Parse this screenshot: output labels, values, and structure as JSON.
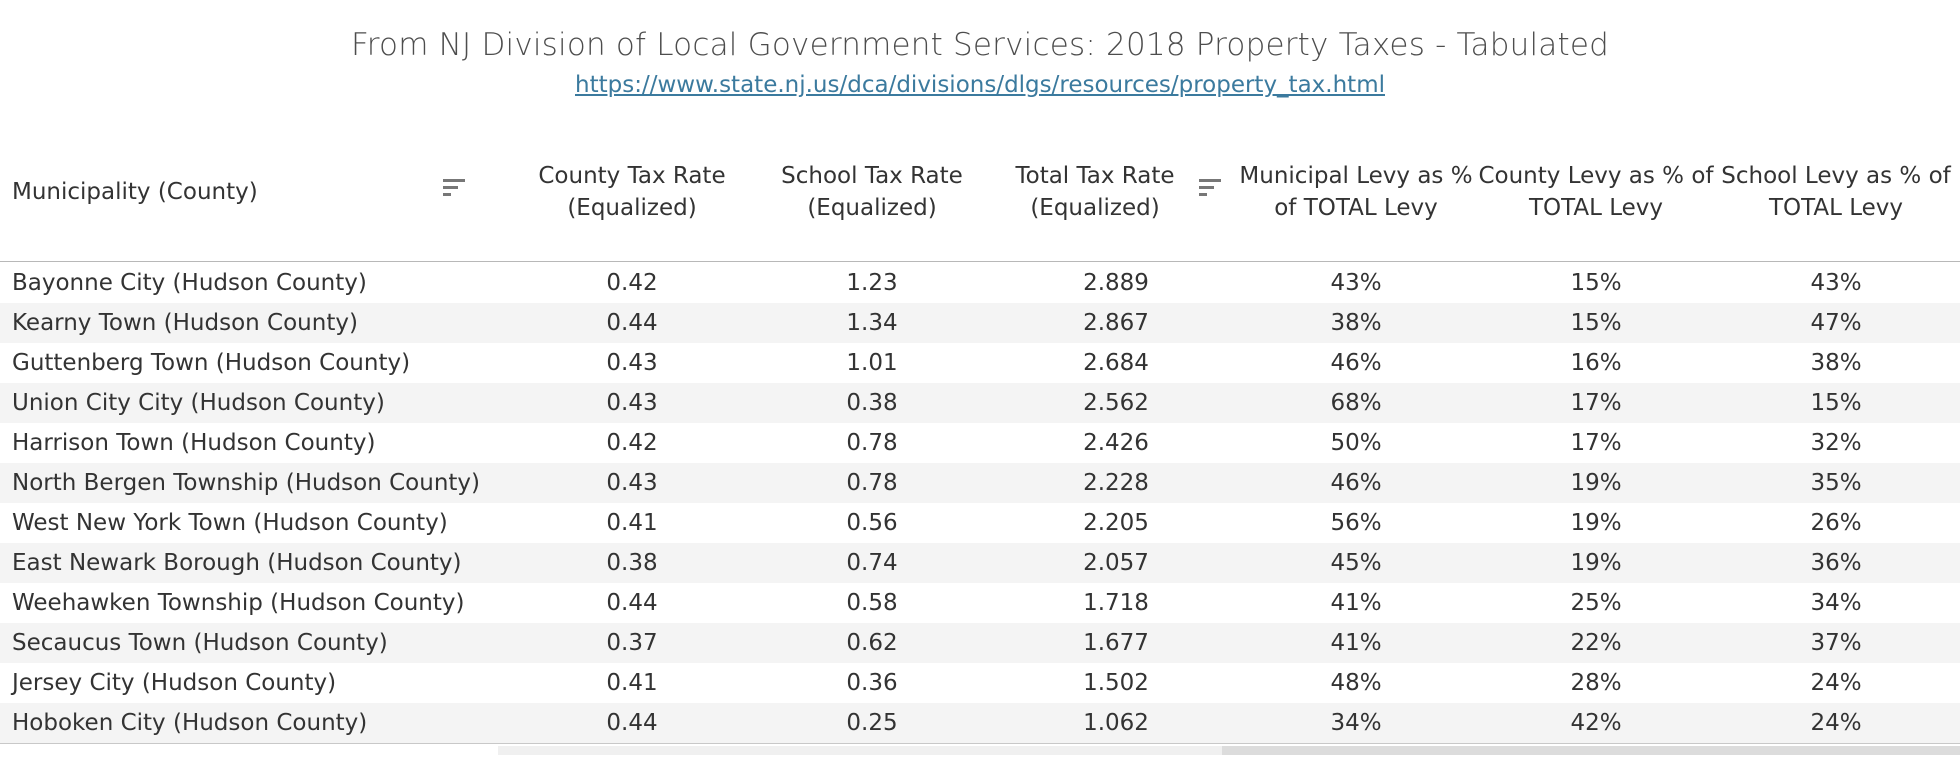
{
  "header": {
    "title": "From NJ Division of Local Government Services:  2018 Property Taxes - Tabulated",
    "link": "https://www.state.nj.us/dca/divisions/dlgs/resources/property_tax.html"
  },
  "colors": {
    "link": "#3b7a9e",
    "row_band": "#f4f4f4",
    "text": "#333333"
  },
  "icons": {
    "sort_municipality": "sort-descending-icon",
    "sort_total_rate": "sort-descending-icon"
  },
  "chart_data": {
    "type": "table",
    "title": "From NJ Division of Local Government Services:  2018 Property Taxes - Tabulated",
    "columns": [
      "Municipality (County)",
      "County Tax Rate (Equalized)",
      "School Tax Rate (Equalized)",
      "Total Tax Rate (Equalized)",
      "Municipal Levy as % of TOTAL Levy",
      "County Levy as % of TOTAL Levy",
      "School Levy as % of TOTAL Levy"
    ],
    "column_lines": [
      [
        "Municipality (County)"
      ],
      [
        "County Tax Rate",
        "(Equalized)"
      ],
      [
        "School Tax Rate",
        "(Equalized)"
      ],
      [
        "Total Tax Rate",
        "(Equalized)"
      ],
      [
        "Municipal Levy as %",
        "of TOTAL Levy"
      ],
      [
        "County Levy as % of",
        "TOTAL Levy"
      ],
      [
        "School Levy as % of",
        "TOTAL Levy"
      ]
    ],
    "rows": [
      [
        "Bayonne City (Hudson County)",
        "0.42",
        "1.23",
        "2.889",
        "43%",
        "15%",
        "43%"
      ],
      [
        "Kearny Town (Hudson County)",
        "0.44",
        "1.34",
        "2.867",
        "38%",
        "15%",
        "47%"
      ],
      [
        "Guttenberg Town (Hudson County)",
        "0.43",
        "1.01",
        "2.684",
        "46%",
        "16%",
        "38%"
      ],
      [
        "Union City City (Hudson County)",
        "0.43",
        "0.38",
        "2.562",
        "68%",
        "17%",
        "15%"
      ],
      [
        "Harrison Town (Hudson County)",
        "0.42",
        "0.78",
        "2.426",
        "50%",
        "17%",
        "32%"
      ],
      [
        "North Bergen Township (Hudson County)",
        "0.43",
        "0.78",
        "2.228",
        "46%",
        "19%",
        "35%"
      ],
      [
        "West New York Town (Hudson County)",
        "0.41",
        "0.56",
        "2.205",
        "56%",
        "19%",
        "26%"
      ],
      [
        "East Newark Borough (Hudson County)",
        "0.38",
        "0.74",
        "2.057",
        "45%",
        "19%",
        "36%"
      ],
      [
        "Weehawken Township (Hudson County)",
        "0.44",
        "0.58",
        "1.718",
        "41%",
        "25%",
        "34%"
      ],
      [
        "Secaucus Town (Hudson County)",
        "0.37",
        "0.62",
        "1.677",
        "41%",
        "22%",
        "37%"
      ],
      [
        "Jersey City (Hudson County)",
        "0.41",
        "0.36",
        "1.502",
        "48%",
        "28%",
        "24%"
      ],
      [
        "Hoboken City (Hudson County)",
        "0.44",
        "0.25",
        "1.062",
        "34%",
        "42%",
        "24%"
      ]
    ]
  }
}
